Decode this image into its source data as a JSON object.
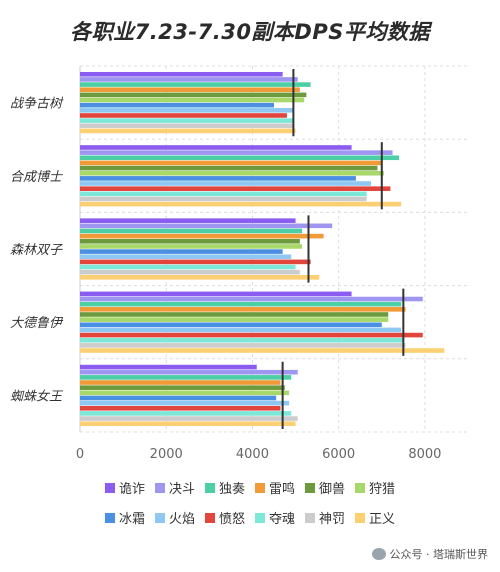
{
  "chart_data": {
    "type": "bar",
    "title": "各职业7.23-7.30副本DPS平均数据",
    "categories": [
      "战争古树",
      "合成博士",
      "森林双子",
      "大德鲁伊",
      "蜘蛛女王"
    ],
    "xlim": [
      0,
      9000
    ],
    "xticks": [
      "0",
      "2000",
      "4000",
      "6000",
      "8000"
    ],
    "grid": true,
    "legend_position": "bottom",
    "series": [
      {
        "name": "诡诈",
        "color": "#8a5cf0",
        "values": [
          4700,
          6300,
          5000,
          6300,
          4100
        ]
      },
      {
        "name": "决斗",
        "color": "#9f96f2",
        "values": [
          5050,
          7250,
          5850,
          7950,
          5050
        ]
      },
      {
        "name": "独奏",
        "color": "#4ccfa4",
        "values": [
          5350,
          7400,
          5150,
          7450,
          4900
        ]
      },
      {
        "name": "雷鸣",
        "color": "#f09a38",
        "values": [
          5100,
          7000,
          5650,
          7550,
          4650
        ]
      },
      {
        "name": "御兽",
        "color": "#6e9a3e",
        "values": [
          5250,
          6900,
          5100,
          7150,
          4750
        ]
      },
      {
        "name": "狩猎",
        "color": "#a8d86a",
        "values": [
          5200,
          7050,
          5150,
          7150,
          4850
        ]
      },
      {
        "name": "冰霜",
        "color": "#4b8fe2",
        "values": [
          4500,
          6400,
          4700,
          7000,
          4550
        ]
      },
      {
        "name": "火焰",
        "color": "#8ec8f2",
        "values": [
          4950,
          6750,
          4900,
          7450,
          4850
        ]
      },
      {
        "name": "愤怒",
        "color": "#e2453c",
        "values": [
          4800,
          7200,
          5350,
          7950,
          4650
        ]
      },
      {
        "name": "夺魂",
        "color": "#7ee8d8",
        "values": [
          4950,
          6650,
          5000,
          7500,
          4900
        ]
      },
      {
        "name": "神罚",
        "color": "#cccccc",
        "values": [
          4950,
          6650,
          5100,
          7550,
          5050
        ]
      },
      {
        "name": "正义",
        "color": "#fbcf72",
        "values": [
          5000,
          7450,
          5550,
          8450,
          5000
        ]
      }
    ],
    "averages": [
      4950,
      7000,
      5300,
      7500,
      4700
    ]
  },
  "watermark": "公众号 · 塔瑞斯世界"
}
